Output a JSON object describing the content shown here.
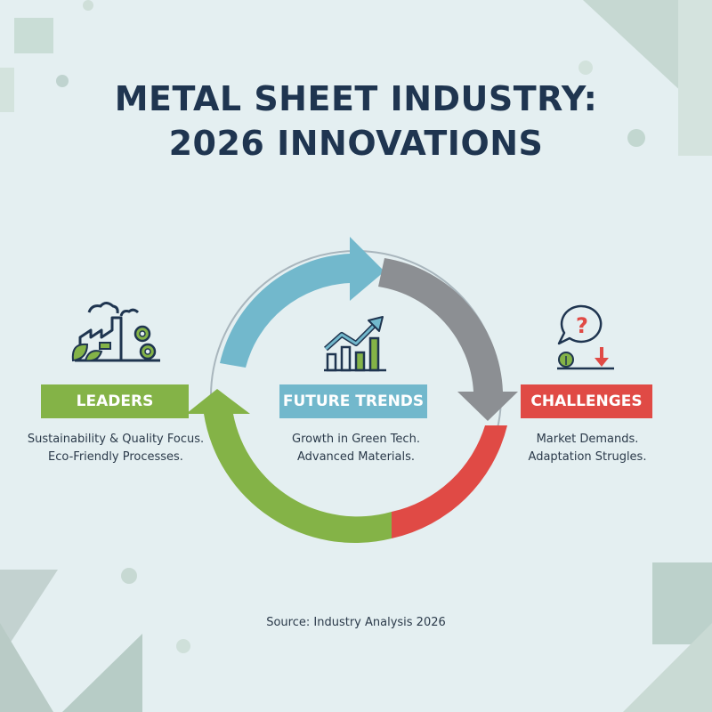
{
  "title": {
    "line1": "METAL SHEET INDUSTRY:",
    "line2": "2026 INNOVATIONS"
  },
  "leaders": {
    "label": "LEADERS",
    "desc_line1": "Sustainability & Quality Focus.",
    "desc_line2": "Eco-Friendly Processes.",
    "icon": "factory-gears-leaf-icon",
    "color": "#84b347"
  },
  "future_trends": {
    "label": "FUTURE TRENDS",
    "desc_line1": "Growth in Green Tech.",
    "desc_line2": "Advanced Materials.",
    "icon": "growth-chart-icon",
    "color": "#72b8cc"
  },
  "challenges": {
    "label": "CHALLENGES",
    "desc_line1": "Market Demands.",
    "desc_line2": "Adaptation Strugles.",
    "icon": "question-bubble-down-arrow-icon",
    "color": "#e04a45"
  },
  "cycle_colors": {
    "blue": "#72b8cc",
    "gray": "#8c8f93",
    "red": "#e04a45",
    "green": "#84b347"
  },
  "source": "Source: Industry Analysis 2026"
}
